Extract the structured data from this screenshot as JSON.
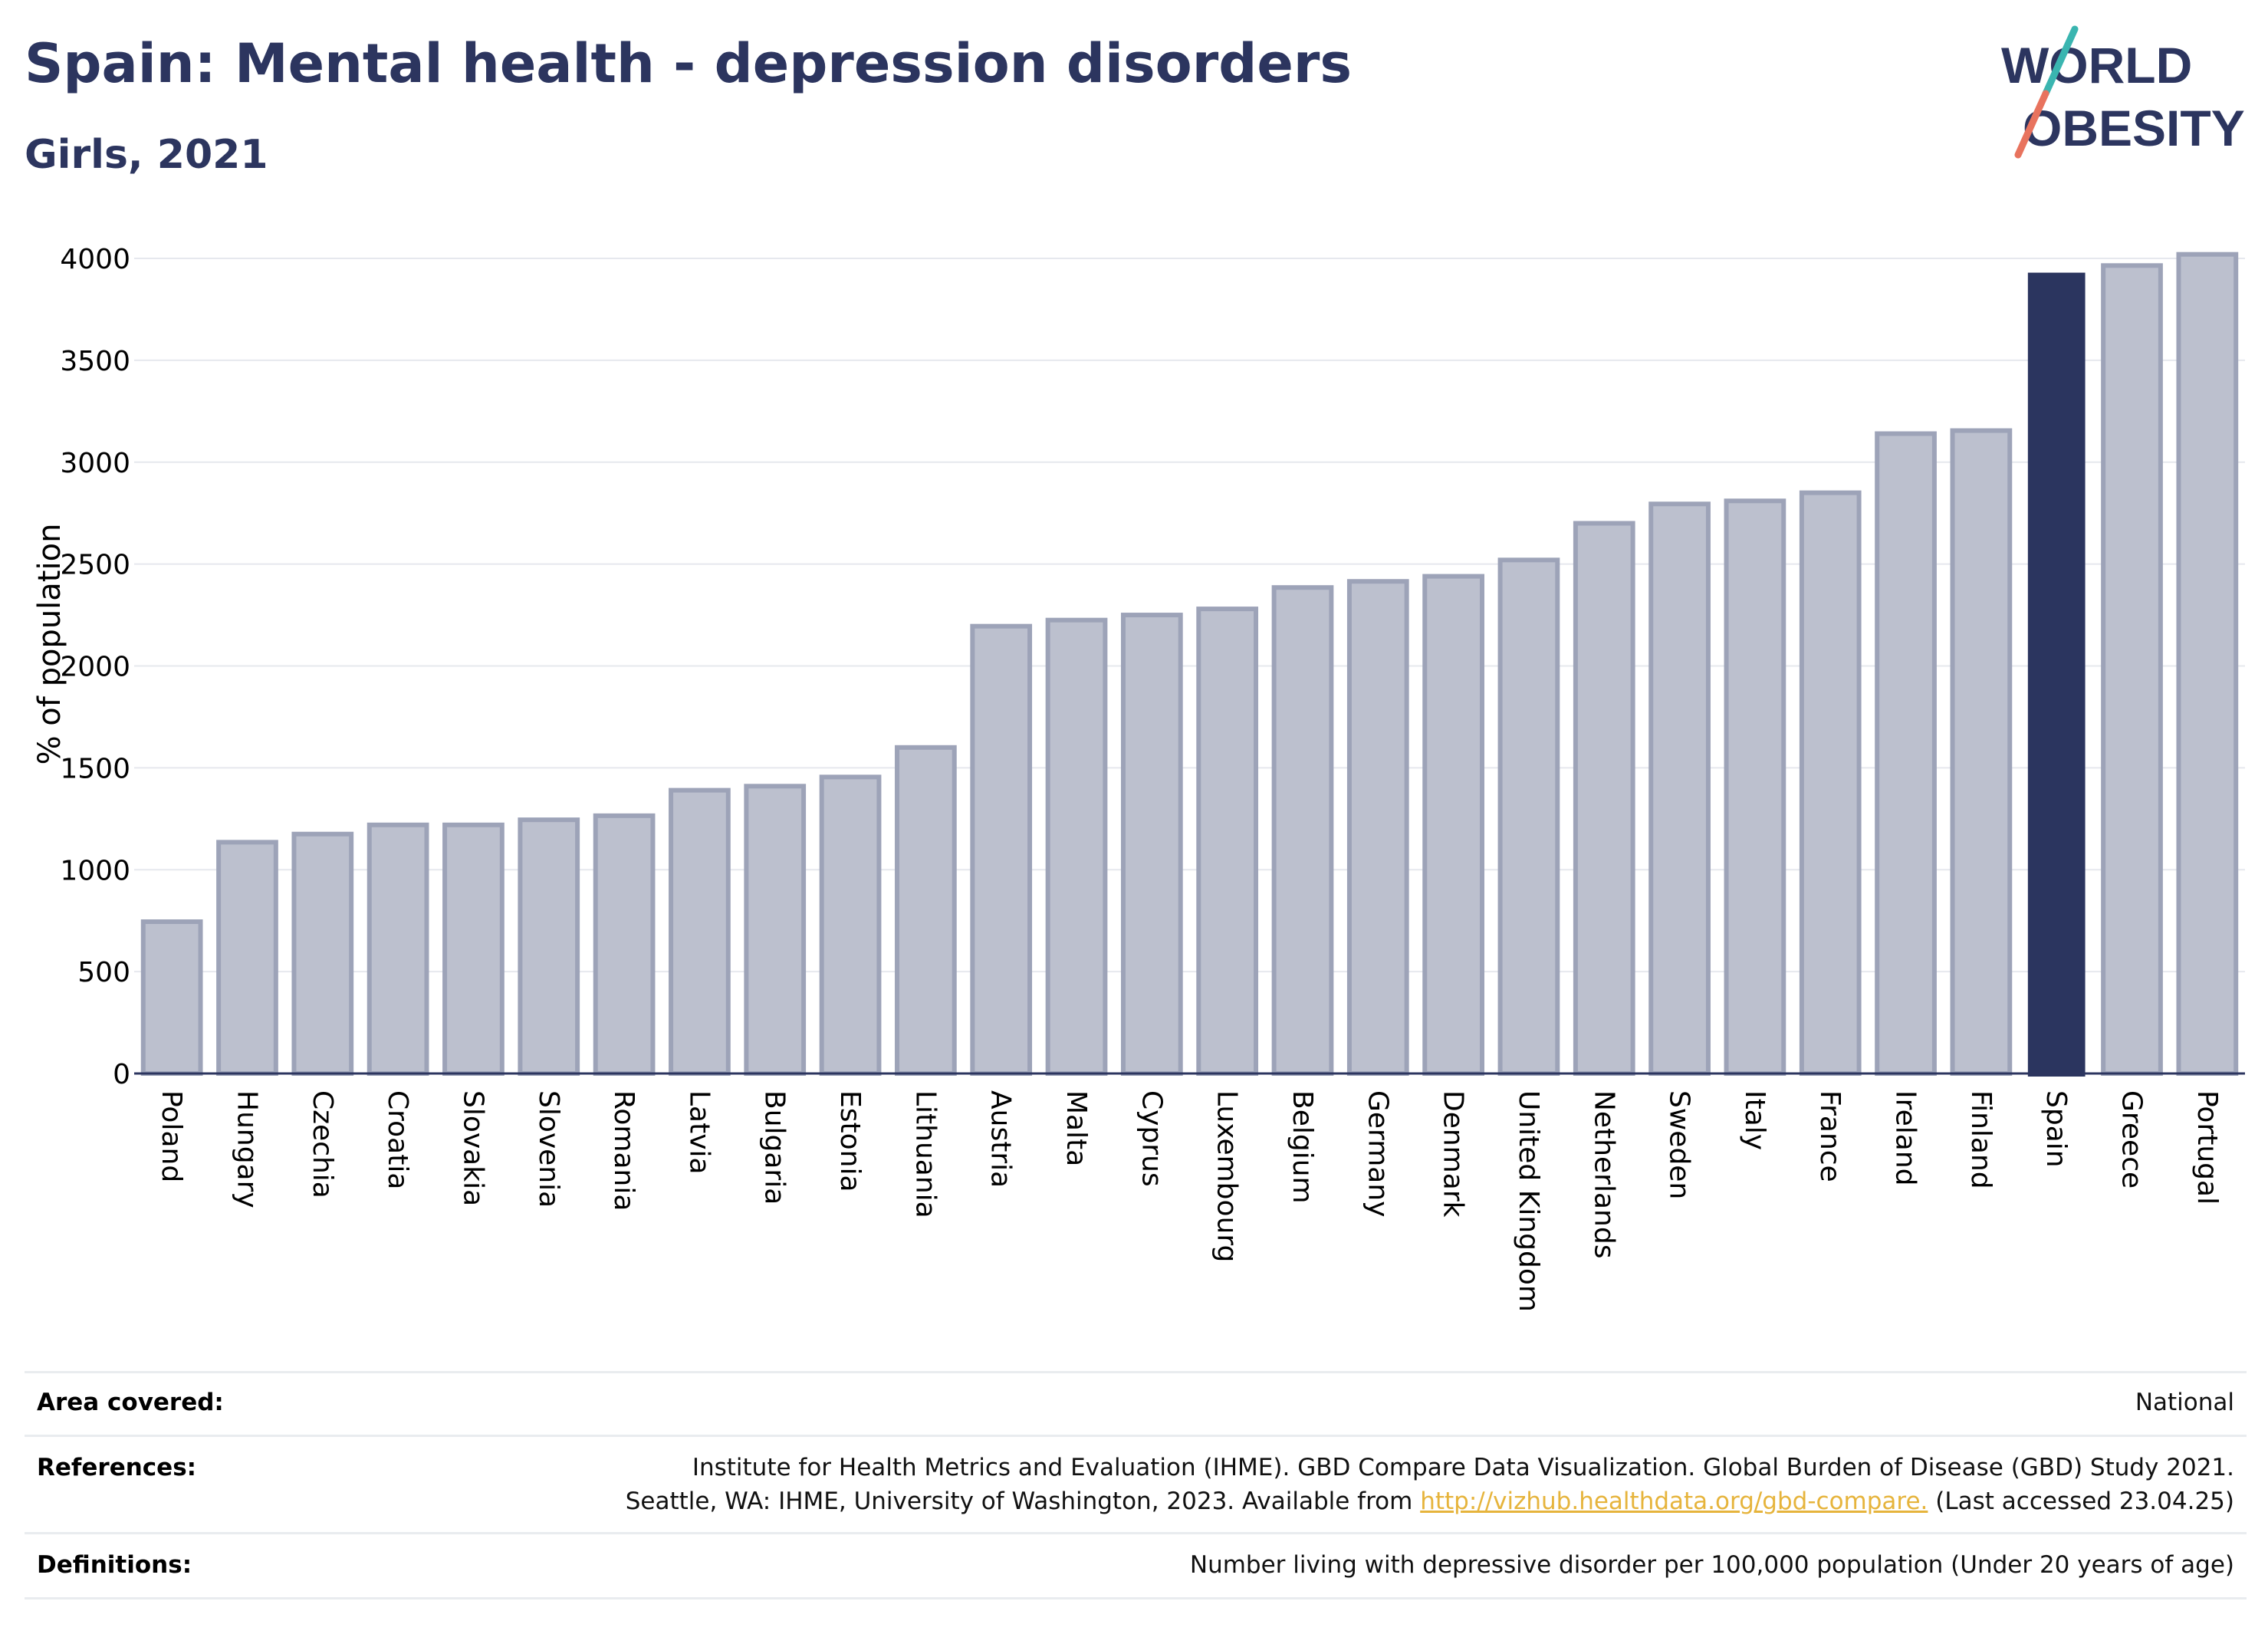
{
  "header": {
    "title": "Spain: Mental health - depression disorders",
    "subtitle": "Girls, 2021"
  },
  "logo": {
    "line1": "WORLD",
    "line2": "OBESITY",
    "colors": {
      "text": "#2c355f",
      "slash_top": "#3ab5b0",
      "slash_bottom": "#e8735e"
    }
  },
  "chart_data": {
    "type": "bar",
    "ylabel": "% of population",
    "xlabel": "",
    "ylim": [
      0,
      4000
    ],
    "yticks": [
      0,
      500,
      1000,
      1500,
      2000,
      2500,
      3000,
      3500,
      4000
    ],
    "grid": true,
    "highlight": "Spain",
    "colors": {
      "bar": "#bcc0ce",
      "bar_border": "#9da3b8",
      "highlight": "#2b355f"
    },
    "categories": [
      "Poland",
      "Hungary",
      "Czechia",
      "Croatia",
      "Slovakia",
      "Slovenia",
      "Romania",
      "Latvia",
      "Bulgaria",
      "Estonia",
      "Lithuania",
      "Austria",
      "Malta",
      "Cyprus",
      "Luxembourg",
      "Belgium",
      "Germany",
      "Denmark",
      "United Kingdom",
      "Netherlands",
      "Sweden",
      "Italy",
      "France",
      "Ireland",
      "Finland",
      "Spain",
      "Greece",
      "Portugal"
    ],
    "values": [
      745,
      1135,
      1175,
      1220,
      1220,
      1245,
      1265,
      1390,
      1410,
      1455,
      1600,
      2195,
      2225,
      2250,
      2280,
      2385,
      2415,
      2440,
      2520,
      2700,
      2795,
      2810,
      2850,
      3140,
      3155,
      3930,
      3965,
      4020
    ]
  },
  "info": {
    "area": {
      "label": "Area covered:",
      "value": "National"
    },
    "references": {
      "label": "References:",
      "line1": "Institute for Health Metrics and Evaluation (IHME). GBD Compare Data Visualization. Global Burden of Disease (GBD) Study 2021.",
      "line2_pre": "Seattle, WA: IHME, University of Washington, 2023. Available from ",
      "link": "http://vizhub.healthdata.org/gbd-compare.",
      "line2_post": " (Last accessed 23.04.25)"
    },
    "definitions": {
      "label": "Definitions:",
      "value": "Number living with depressive disorder per 100,000 population (Under 20 years of age)"
    }
  }
}
